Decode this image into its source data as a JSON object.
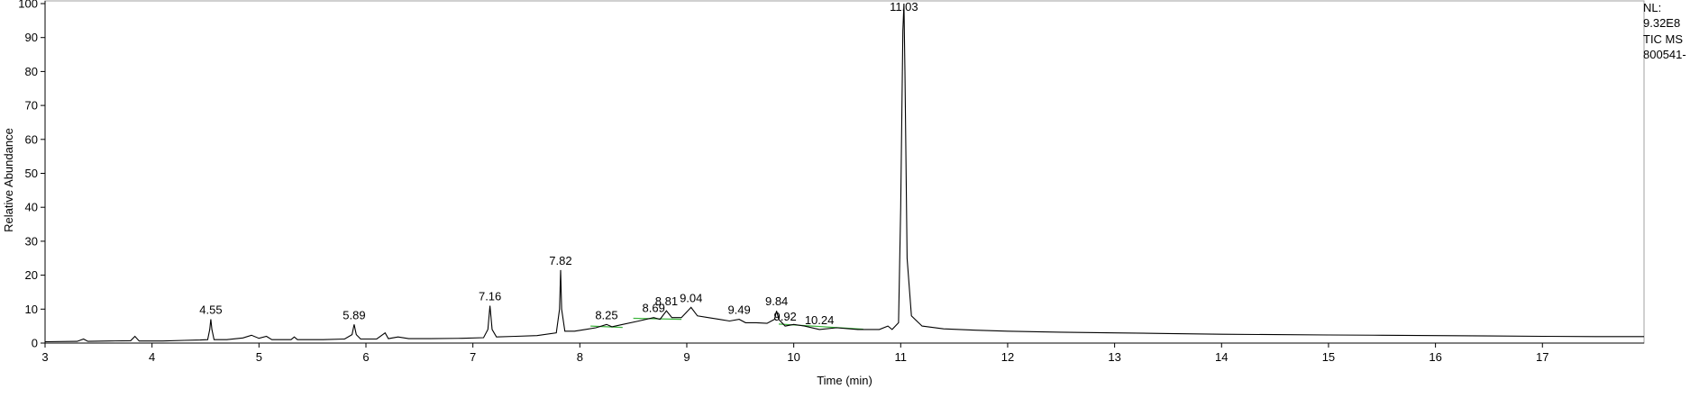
{
  "side_info": {
    "nl_label": "NL:",
    "nl_value": "9.32E8",
    "scan": "TIC  MS",
    "sample": "800541-"
  },
  "chart_data": {
    "type": "line",
    "xlabel": "Time (min)",
    "ylabel": "Relative Abundance",
    "xlim": [
      3.0,
      17.95
    ],
    "ylim": [
      0,
      100
    ],
    "xticks": [
      3,
      4,
      5,
      6,
      7,
      8,
      9,
      10,
      11,
      12,
      13,
      14,
      15,
      16,
      17
    ],
    "yticks": [
      0,
      10,
      20,
      30,
      40,
      50,
      60,
      70,
      80,
      90,
      100
    ],
    "grid": false,
    "colors": {
      "trace": "#000000",
      "baseline": "#3cb43c",
      "frame": "#a0a0a0"
    },
    "peak_labels": [
      {
        "x": 4.55,
        "y": 7.0,
        "label": "4.55"
      },
      {
        "x": 5.89,
        "y": 5.5,
        "label": "5.89"
      },
      {
        "x": 7.16,
        "y": 11.0,
        "label": "7.16"
      },
      {
        "x": 7.82,
        "y": 21.5,
        "label": "7.82"
      },
      {
        "x": 8.25,
        "y": 5.5,
        "label": "8.25"
      },
      {
        "x": 8.69,
        "y": 7.5,
        "label": "8.69"
      },
      {
        "x": 8.81,
        "y": 9.5,
        "label": "8.81"
      },
      {
        "x": 9.04,
        "y": 10.5,
        "label": "9.04"
      },
      {
        "x": 9.49,
        "y": 7.0,
        "label": "9.49"
      },
      {
        "x": 9.84,
        "y": 9.5,
        "label": "9.84"
      },
      {
        "x": 9.92,
        "y": 5.0,
        "label": "9.92"
      },
      {
        "x": 10.24,
        "y": 4.0,
        "label": "10.24"
      },
      {
        "x": 11.03,
        "y": 100.0,
        "label": "11.03"
      }
    ],
    "trace": [
      [
        3.0,
        0.4
      ],
      [
        3.3,
        0.5
      ],
      [
        3.36,
        1.2
      ],
      [
        3.4,
        0.5
      ],
      [
        3.6,
        0.6
      ],
      [
        3.8,
        0.7
      ],
      [
        3.84,
        2.0
      ],
      [
        3.88,
        0.6
      ],
      [
        4.1,
        0.6
      ],
      [
        4.3,
        0.8
      ],
      [
        4.45,
        0.9
      ],
      [
        4.52,
        1.0
      ],
      [
        4.54,
        4.0
      ],
      [
        4.55,
        7.0
      ],
      [
        4.56,
        4.0
      ],
      [
        4.58,
        1.0
      ],
      [
        4.7,
        1.0
      ],
      [
        4.85,
        1.5
      ],
      [
        4.93,
        2.3
      ],
      [
        5.0,
        1.4
      ],
      [
        5.07,
        2.0
      ],
      [
        5.12,
        1.0
      ],
      [
        5.3,
        1.0
      ],
      [
        5.33,
        1.8
      ],
      [
        5.36,
        1.0
      ],
      [
        5.6,
        1.0
      ],
      [
        5.8,
        1.2
      ],
      [
        5.87,
        2.5
      ],
      [
        5.89,
        5.5
      ],
      [
        5.91,
        2.5
      ],
      [
        5.95,
        1.2
      ],
      [
        6.1,
        1.2
      ],
      [
        6.18,
        3.0
      ],
      [
        6.21,
        1.3
      ],
      [
        6.3,
        1.8
      ],
      [
        6.4,
        1.3
      ],
      [
        6.6,
        1.3
      ],
      [
        6.9,
        1.4
      ],
      [
        7.1,
        1.6
      ],
      [
        7.14,
        4.0
      ],
      [
        7.16,
        11.0
      ],
      [
        7.18,
        4.0
      ],
      [
        7.22,
        1.8
      ],
      [
        7.4,
        2.0
      ],
      [
        7.6,
        2.2
      ],
      [
        7.78,
        3.0
      ],
      [
        7.81,
        10.0
      ],
      [
        7.82,
        21.5
      ],
      [
        7.83,
        10.0
      ],
      [
        7.86,
        3.5
      ],
      [
        7.95,
        3.5
      ],
      [
        8.05,
        4.0
      ],
      [
        8.15,
        4.5
      ],
      [
        8.25,
        5.5
      ],
      [
        8.3,
        4.8
      ],
      [
        8.4,
        5.5
      ],
      [
        8.55,
        6.5
      ],
      [
        8.69,
        7.5
      ],
      [
        8.75,
        7.0
      ],
      [
        8.81,
        9.5
      ],
      [
        8.86,
        7.5
      ],
      [
        8.95,
        7.5
      ],
      [
        9.04,
        10.5
      ],
      [
        9.1,
        8.0
      ],
      [
        9.2,
        7.5
      ],
      [
        9.3,
        7.0
      ],
      [
        9.4,
        6.5
      ],
      [
        9.49,
        7.0
      ],
      [
        9.55,
        6.0
      ],
      [
        9.65,
        6.0
      ],
      [
        9.75,
        5.8
      ],
      [
        9.82,
        7.0
      ],
      [
        9.84,
        9.5
      ],
      [
        9.86,
        7.0
      ],
      [
        9.92,
        5.0
      ],
      [
        10.0,
        5.5
      ],
      [
        10.1,
        5.0
      ],
      [
        10.24,
        4.0
      ],
      [
        10.4,
        4.5
      ],
      [
        10.6,
        4.0
      ],
      [
        10.8,
        4.0
      ],
      [
        10.88,
        5.0
      ],
      [
        10.92,
        4.0
      ],
      [
        10.98,
        6.0
      ],
      [
        11.0,
        40.0
      ],
      [
        11.02,
        92.0
      ],
      [
        11.03,
        100.0
      ],
      [
        11.04,
        80.0
      ],
      [
        11.06,
        25.0
      ],
      [
        11.1,
        8.0
      ],
      [
        11.2,
        5.0
      ],
      [
        11.4,
        4.2
      ],
      [
        11.7,
        3.8
      ],
      [
        12.0,
        3.5
      ],
      [
        12.5,
        3.2
      ],
      [
        13.0,
        3.0
      ],
      [
        13.5,
        2.8
      ],
      [
        14.0,
        2.6
      ],
      [
        14.5,
        2.5
      ],
      [
        15.0,
        2.4
      ],
      [
        15.5,
        2.3
      ],
      [
        16.0,
        2.2
      ],
      [
        16.5,
        2.1
      ],
      [
        17.0,
        2.0
      ],
      [
        17.5,
        1.9
      ],
      [
        17.95,
        1.9
      ]
    ],
    "baselines": [
      [
        [
          8.1,
          5.0
        ],
        [
          8.4,
          4.6
        ]
      ],
      [
        [
          8.5,
          7.3
        ],
        [
          8.95,
          7.0
        ]
      ],
      [
        [
          9.86,
          5.6
        ],
        [
          10.65,
          4.1
        ]
      ]
    ]
  }
}
